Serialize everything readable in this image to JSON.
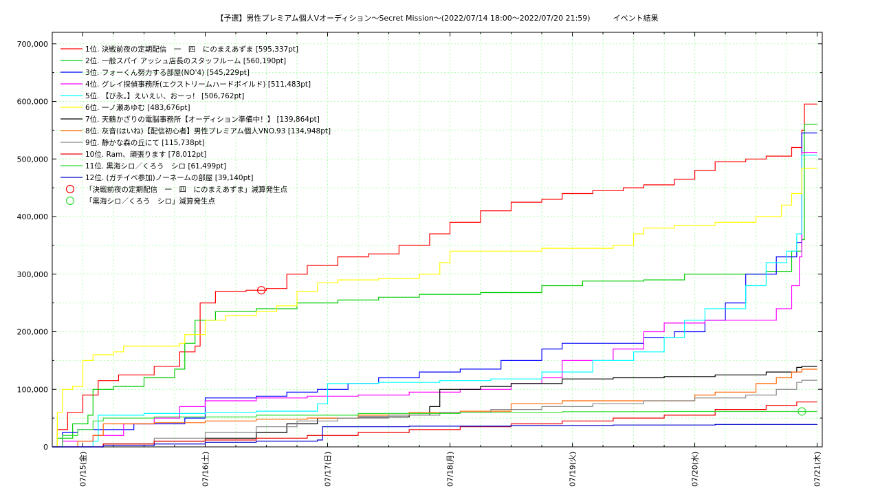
{
  "chart_data": {
    "type": "line",
    "title": "【予選】男性プレミアム個人Vオーディション〜Secret Mission～(2022/07/14 18:00～2022/07/20 21:59)　　　イベント結果",
    "ylim": [
      0,
      720000
    ],
    "y_ticks": [
      0,
      100000,
      200000,
      300000,
      400000,
      500000,
      600000,
      700000
    ],
    "y_tick_labels": [
      "0",
      "100,000",
      "200,000",
      "300,000",
      "400,000",
      "500,000",
      "600,000",
      "700,000"
    ],
    "x_tick_labels": [
      "07/15(金)",
      "07/16(土)",
      "07/17(日)",
      "07/18(月)",
      "07/19(火)",
      "07/20(水)",
      "07/21(木)"
    ],
    "x_tick_times_hours": [
      6,
      30,
      54,
      78,
      102,
      126,
      150
    ],
    "x_range_hours": [
      0,
      151
    ],
    "grid": true,
    "legend_position": "top-left",
    "series": [
      {
        "name": "1位. 決戦前夜の定期配信　一　四　にのまえあずま [595,337pt]",
        "color": "#ff0000",
        "points": [
          [
            0,
            0
          ],
          [
            1,
            30000
          ],
          [
            3,
            60000
          ],
          [
            6,
            90000
          ],
          [
            9,
            115000
          ],
          [
            13,
            125000
          ],
          [
            20,
            140000
          ],
          [
            25,
            165000
          ],
          [
            28,
            175000
          ],
          [
            29,
            250000
          ],
          [
            32,
            270000
          ],
          [
            38,
            272000
          ],
          [
            42,
            275000
          ],
          [
            46,
            300000
          ],
          [
            50,
            315000
          ],
          [
            56,
            330000
          ],
          [
            62,
            335000
          ],
          [
            68,
            350000
          ],
          [
            74,
            370000
          ],
          [
            78,
            390000
          ],
          [
            84,
            410000
          ],
          [
            90,
            425000
          ],
          [
            96,
            430000
          ],
          [
            100,
            440000
          ],
          [
            106,
            445000
          ],
          [
            112,
            450000
          ],
          [
            116,
            455000
          ],
          [
            122,
            465000
          ],
          [
            126,
            480000
          ],
          [
            130,
            495000
          ],
          [
            136,
            500000
          ],
          [
            140,
            505000
          ],
          [
            145,
            520000
          ],
          [
            147,
            550000
          ],
          [
            147.5,
            595337
          ],
          [
            150,
            595337
          ]
        ]
      },
      {
        "name": "2位. 一般スパイ アッシュ店長のスタッフルーム [560,190pt]",
        "color": "#00cc00",
        "points": [
          [
            0,
            0
          ],
          [
            1,
            15000
          ],
          [
            4,
            40000
          ],
          [
            7,
            55000
          ],
          [
            8,
            100000
          ],
          [
            12,
            105000
          ],
          [
            18,
            120000
          ],
          [
            24,
            135000
          ],
          [
            26,
            180000
          ],
          [
            28,
            220000
          ],
          [
            32,
            235000
          ],
          [
            40,
            240000
          ],
          [
            48,
            250000
          ],
          [
            56,
            255000
          ],
          [
            64,
            260000
          ],
          [
            72,
            265000
          ],
          [
            84,
            268000
          ],
          [
            96,
            280000
          ],
          [
            104,
            288000
          ],
          [
            116,
            290000
          ],
          [
            124,
            300000
          ],
          [
            132,
            300000
          ],
          [
            140,
            305000
          ],
          [
            145,
            340000
          ],
          [
            147,
            360000
          ],
          [
            147.5,
            560190
          ],
          [
            150,
            560190
          ]
        ]
      },
      {
        "name": "3位. フォーくん努力する部屋(NO'4) [545,229pt]",
        "color": "#0000ff",
        "points": [
          [
            0,
            0
          ],
          [
            2,
            25000
          ],
          [
            5,
            30000
          ],
          [
            10,
            30000
          ],
          [
            16,
            40000
          ],
          [
            26,
            50000
          ],
          [
            30,
            85000
          ],
          [
            40,
            88000
          ],
          [
            46,
            95000
          ],
          [
            52,
            100000
          ],
          [
            58,
            110000
          ],
          [
            64,
            120000
          ],
          [
            72,
            130000
          ],
          [
            80,
            135000
          ],
          [
            88,
            150000
          ],
          [
            96,
            170000
          ],
          [
            100,
            180000
          ],
          [
            110,
            180000
          ],
          [
            116,
            190000
          ],
          [
            122,
            200000
          ],
          [
            128,
            220000
          ],
          [
            132,
            250000
          ],
          [
            136,
            300000
          ],
          [
            142,
            330000
          ],
          [
            146,
            355000
          ],
          [
            147,
            545229
          ],
          [
            150,
            545229
          ]
        ]
      },
      {
        "name": "4位. グレイ探偵事務所(エクストリームハードボイルド) [511,483pt]",
        "color": "#ff00ff",
        "points": [
          [
            0,
            0
          ],
          [
            2,
            10000
          ],
          [
            8,
            20000
          ],
          [
            14,
            40000
          ],
          [
            20,
            50000
          ],
          [
            25,
            70000
          ],
          [
            30,
            80000
          ],
          [
            40,
            85000
          ],
          [
            50,
            88000
          ],
          [
            60,
            90000
          ],
          [
            70,
            95000
          ],
          [
            80,
            100000
          ],
          [
            90,
            110000
          ],
          [
            96,
            120000
          ],
          [
            100,
            150000
          ],
          [
            110,
            170000
          ],
          [
            116,
            200000
          ],
          [
            120,
            215000
          ],
          [
            128,
            220000
          ],
          [
            138,
            220000
          ],
          [
            142,
            240000
          ],
          [
            145,
            280000
          ],
          [
            146.5,
            330000
          ],
          [
            147,
            511483
          ],
          [
            150,
            511483
          ]
        ]
      },
      {
        "name": "5位. 【び永。】えいえい、おーっ！ [506,762pt]",
        "color": "#00ffff",
        "points": [
          [
            0,
            0
          ],
          [
            8,
            10000
          ],
          [
            9,
            55000
          ],
          [
            18,
            58000
          ],
          [
            30,
            60000
          ],
          [
            40,
            62000
          ],
          [
            52,
            75000
          ],
          [
            54,
            110000
          ],
          [
            64,
            112000
          ],
          [
            76,
            115000
          ],
          [
            86,
            118000
          ],
          [
            96,
            130000
          ],
          [
            106,
            150000
          ],
          [
            114,
            165000
          ],
          [
            120,
            190000
          ],
          [
            124,
            220000
          ],
          [
            128,
            240000
          ],
          [
            136,
            280000
          ],
          [
            140,
            320000
          ],
          [
            144,
            340000
          ],
          [
            146,
            370000
          ],
          [
            147,
            506762
          ],
          [
            150,
            506762
          ]
        ]
      },
      {
        "name": "6位. 一ノ瀬あゆむ [483,676pt]",
        "color": "#ffff00",
        "points": [
          [
            0,
            0
          ],
          [
            1,
            60000
          ],
          [
            2,
            100000
          ],
          [
            4,
            105000
          ],
          [
            6,
            150000
          ],
          [
            8,
            160000
          ],
          [
            12,
            165000
          ],
          [
            14,
            175000
          ],
          [
            20,
            175000
          ],
          [
            25,
            180000
          ],
          [
            26,
            195000
          ],
          [
            30,
            220000
          ],
          [
            34,
            228000
          ],
          [
            40,
            235000
          ],
          [
            44,
            245000
          ],
          [
            48,
            270000
          ],
          [
            52,
            285000
          ],
          [
            56,
            290000
          ],
          [
            64,
            292000
          ],
          [
            72,
            300000
          ],
          [
            76,
            320000
          ],
          [
            78,
            340000
          ],
          [
            90,
            340000
          ],
          [
            96,
            345000
          ],
          [
            110,
            350000
          ],
          [
            114,
            370000
          ],
          [
            116,
            380000
          ],
          [
            122,
            385000
          ],
          [
            130,
            390000
          ],
          [
            138,
            400000
          ],
          [
            143,
            420000
          ],
          [
            145,
            440000
          ],
          [
            147,
            483676
          ],
          [
            150,
            483676
          ]
        ]
      },
      {
        "name": "7位. 天鶴かざりの電脳事務所【オーディション準備中！】 [139,864pt]",
        "color": "#000000",
        "points": [
          [
            0,
            0
          ],
          [
            10,
            5000
          ],
          [
            20,
            10000
          ],
          [
            30,
            15000
          ],
          [
            40,
            25000
          ],
          [
            46,
            40000
          ],
          [
            52,
            50000
          ],
          [
            60,
            52000
          ],
          [
            70,
            55000
          ],
          [
            74,
            70000
          ],
          [
            76,
            100000
          ],
          [
            84,
            105000
          ],
          [
            90,
            110000
          ],
          [
            100,
            118000
          ],
          [
            110,
            120000
          ],
          [
            120,
            122000
          ],
          [
            130,
            125000
          ],
          [
            140,
            130000
          ],
          [
            146,
            138000
          ],
          [
            147,
            139864
          ],
          [
            150,
            139864
          ]
        ]
      },
      {
        "name": "8位. 灰音(はいね)【配信初心者】男性プレミアム個人VNO.93 [134,948pt]",
        "color": "#ff6600",
        "points": [
          [
            0,
            0
          ],
          [
            5,
            10000
          ],
          [
            8,
            20000
          ],
          [
            10,
            40000
          ],
          [
            20,
            42000
          ],
          [
            30,
            45000
          ],
          [
            40,
            48000
          ],
          [
            50,
            50000
          ],
          [
            60,
            55000
          ],
          [
            70,
            60000
          ],
          [
            80,
            62000
          ],
          [
            90,
            75000
          ],
          [
            100,
            80000
          ],
          [
            110,
            80000
          ],
          [
            120,
            80000
          ],
          [
            126,
            90000
          ],
          [
            130,
            95000
          ],
          [
            138,
            110000
          ],
          [
            142,
            120000
          ],
          [
            145,
            130000
          ],
          [
            147,
            134948
          ],
          [
            150,
            134948
          ]
        ]
      },
      {
        "name": "9位. 静かな森の丘にて [115,738pt]",
        "color": "#888888",
        "points": [
          [
            0,
            0
          ],
          [
            10,
            5000
          ],
          [
            20,
            15000
          ],
          [
            30,
            25000
          ],
          [
            40,
            35000
          ],
          [
            48,
            45000
          ],
          [
            56,
            50000
          ],
          [
            66,
            55000
          ],
          [
            76,
            60000
          ],
          [
            86,
            65000
          ],
          [
            96,
            70000
          ],
          [
            106,
            75000
          ],
          [
            116,
            80000
          ],
          [
            126,
            85000
          ],
          [
            136,
            90000
          ],
          [
            142,
            100000
          ],
          [
            146,
            112000
          ],
          [
            147,
            115738
          ],
          [
            150,
            115738
          ]
        ]
      },
      {
        "name": "10位. Ram、頑張ります [78,012pt]",
        "color": "#ee0000",
        "points": [
          [
            0,
            0
          ],
          [
            10,
            5000
          ],
          [
            20,
            10000
          ],
          [
            30,
            12000
          ],
          [
            40,
            15000
          ],
          [
            50,
            20000
          ],
          [
            60,
            25000
          ],
          [
            70,
            30000
          ],
          [
            80,
            35000
          ],
          [
            90,
            40000
          ],
          [
            100,
            45000
          ],
          [
            110,
            50000
          ],
          [
            120,
            55000
          ],
          [
            130,
            65000
          ],
          [
            140,
            72000
          ],
          [
            146,
            78012
          ],
          [
            150,
            78012
          ]
        ]
      },
      {
        "name": "11位. 黒海シロ／くろう　シロ [61,499pt]",
        "color": "#33dd33",
        "points": [
          [
            0,
            0
          ],
          [
            2,
            20000
          ],
          [
            5,
            30000
          ],
          [
            8,
            45000
          ],
          [
            10,
            50000
          ],
          [
            20,
            52000
          ],
          [
            40,
            55000
          ],
          [
            60,
            58000
          ],
          [
            80,
            60000
          ],
          [
            100,
            61000
          ],
          [
            120,
            61499
          ],
          [
            150,
            61499
          ]
        ]
      },
      {
        "name": "12位. (ガチイベ参加)ノーネームの部屋 [39,140pt]",
        "color": "#0000cc",
        "points": [
          [
            0,
            0
          ],
          [
            10,
            2000
          ],
          [
            20,
            5000
          ],
          [
            30,
            8000
          ],
          [
            40,
            10000
          ],
          [
            52,
            12000
          ],
          [
            53,
            35000
          ],
          [
            70,
            36000
          ],
          [
            90,
            37000
          ],
          [
            110,
            38000
          ],
          [
            130,
            39000
          ],
          [
            150,
            39140
          ]
        ]
      }
    ],
    "markers": [
      {
        "name": "「決戦前夜の定期配信　一　四　にのまえあずま」減算発生点",
        "color": "#ff0000",
        "x": 41,
        "y": 272000
      },
      {
        "name": "「黒海シロ／くろう　シロ」減算発生点",
        "color": "#33dd33",
        "x": 147,
        "y": 61499
      }
    ]
  }
}
